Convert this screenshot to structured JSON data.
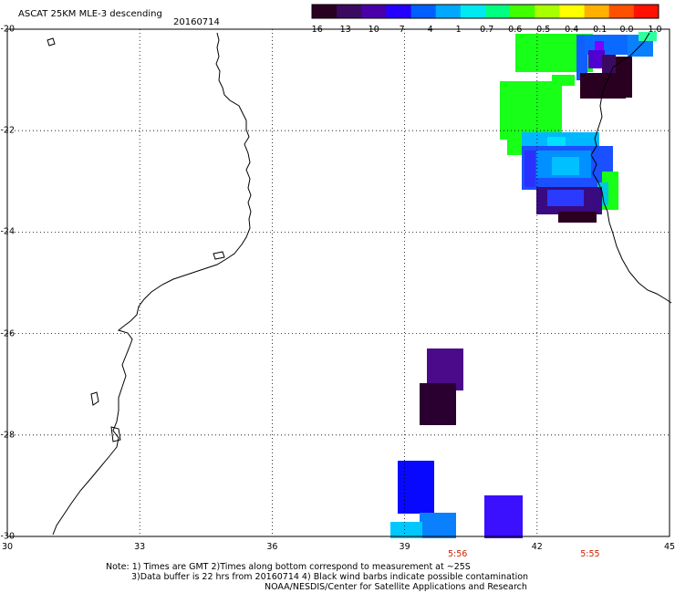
{
  "header": {
    "title": "ASCAT 25KM MLE-3 descending",
    "date": "20160714"
  },
  "colorbar": {
    "labels": [
      "-16",
      "-13",
      "-10",
      "-7",
      "-4",
      "-1",
      "-0.7",
      "-0.6",
      "-0.5",
      "-0.4",
      "-0.1",
      "0.0",
      "1.0"
    ],
    "colors": [
      "#2a0020",
      "#3a0a60",
      "#4a00a8",
      "#2400ff",
      "#0060ff",
      "#00a8ff",
      "#00e8f0",
      "#00ff80",
      "#40ff00",
      "#a8ff00",
      "#ffff00",
      "#ffb000",
      "#ff5000",
      "#ff1000"
    ]
  },
  "map": {
    "lat_labels": [
      "-20",
      "-22",
      "-24",
      "-26",
      "-28",
      "-30"
    ],
    "lon_labels": [
      "30",
      "33",
      "36",
      "39",
      "42",
      "45"
    ],
    "lat_range": [
      -30,
      -20
    ],
    "lon_range": [
      30,
      45
    ],
    "time_labels": [
      {
        "text": "5:56",
        "lon": 40.2
      },
      {
        "text": "5:55",
        "lon": 43.2
      }
    ]
  },
  "footer": {
    "note_line1": "Note: 1) Times are GMT 2)Times along bottom correspond to measurement at ~25S",
    "note_line2": "3)Data buffer is 22 hrs from 20160714 4) Black wind barbs indicate possible contamination",
    "credit": "NOAA/NESDIS/Center for Satellite Applications and Research"
  }
}
